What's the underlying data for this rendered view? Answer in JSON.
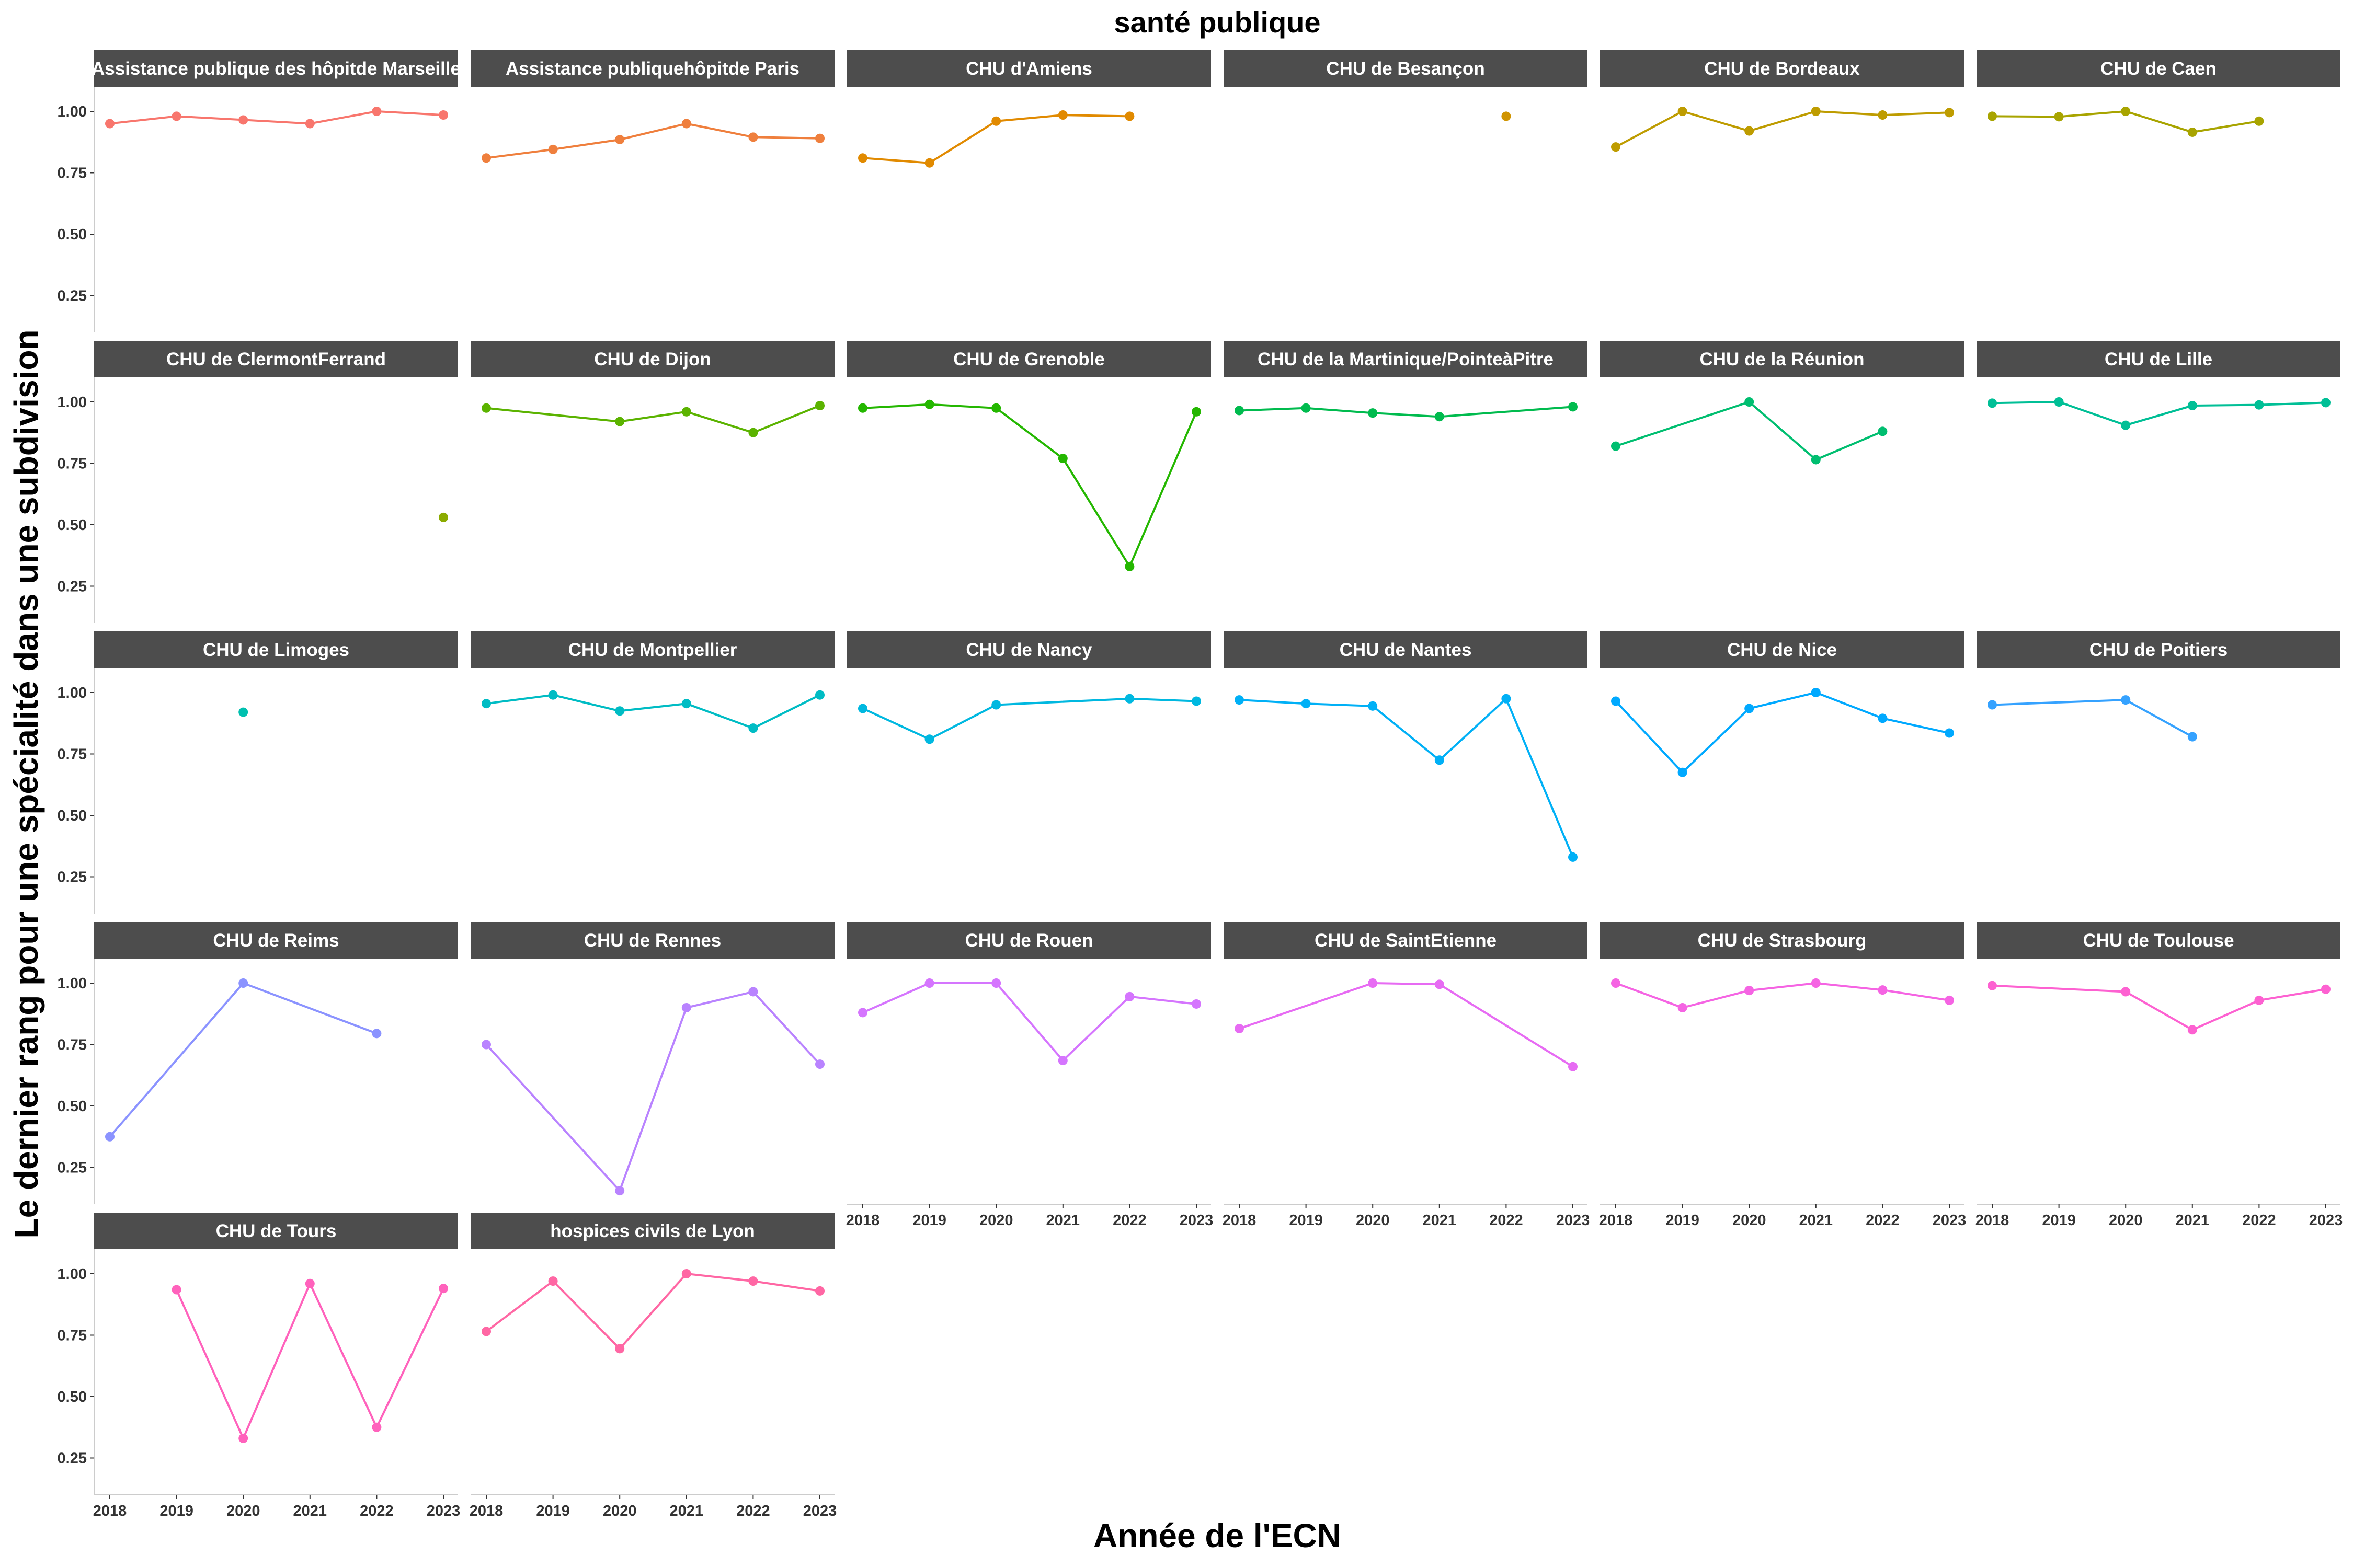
{
  "chart_data": {
    "type": "line",
    "title": "santé publique",
    "xlabel": "Année de l'ECN",
    "ylabel": "Le dernier rang pour une spécialité dans une subdivision",
    "x_ticks": [
      2018,
      2019,
      2020,
      2021,
      2022,
      2023
    ],
    "y_ticks": [
      "0.25",
      "0.50",
      "0.75",
      "1.00"
    ],
    "y_tick_values": [
      0.25,
      0.5,
      0.75,
      1.0
    ],
    "xlim": [
      2018,
      2023
    ],
    "ylim": [
      0.1,
      1.1
    ],
    "grid": false,
    "legend": "none",
    "panels": [
      {
        "name": "Assistance publique des hôpitde Marseille",
        "color": "#F8766D",
        "x": [
          2018,
          2019,
          2020,
          2021,
          2022,
          2023
        ],
        "y": [
          0.95,
          0.98,
          0.965,
          0.95,
          1.0,
          0.985
        ]
      },
      {
        "name": "Assistance publiquehôpitde Paris",
        "color": "#EF7F3D",
        "x": [
          2018,
          2019,
          2020,
          2021,
          2022,
          2023
        ],
        "y": [
          0.81,
          0.845,
          0.885,
          0.95,
          0.895,
          0.89
        ]
      },
      {
        "name": "CHU d'Amiens",
        "color": "#E18A00",
        "x": [
          2018,
          2019,
          2020,
          2021,
          2022
        ],
        "y": [
          0.81,
          0.79,
          0.96,
          0.985,
          0.98
        ]
      },
      {
        "name": "CHU de Besançon",
        "color": "#D09400",
        "x": [
          2022
        ],
        "y": [
          0.98
        ]
      },
      {
        "name": "CHU de Bordeaux",
        "color": "#BE9C00",
        "x": [
          2018,
          2019,
          2020,
          2021,
          2022,
          2023
        ],
        "y": [
          0.855,
          1.0,
          0.92,
          1.0,
          0.985,
          0.995
        ]
      },
      {
        "name": "CHU de Caen",
        "color": "#A8A400",
        "x": [
          2018,
          2019,
          2020,
          2021,
          2022
        ],
        "y": [
          0.98,
          0.978,
          1.0,
          0.915,
          0.96
        ]
      },
      {
        "name": "CHU de ClermontFerrand",
        "color": "#8BAB00",
        "x": [
          2023
        ],
        "y": [
          0.53
        ]
      },
      {
        "name": "CHU de Dijon",
        "color": "#5BB300",
        "x": [
          2018,
          2020,
          2021,
          2022,
          2023
        ],
        "y": [
          0.975,
          0.92,
          0.96,
          0.875,
          0.985
        ]
      },
      {
        "name": "CHU de Grenoble",
        "color": "#24B700",
        "x": [
          2018,
          2019,
          2020,
          2021,
          2022,
          2023
        ],
        "y": [
          0.975,
          0.99,
          0.975,
          0.77,
          0.33,
          0.96
        ]
      },
      {
        "name": "CHU de la Martinique/PointeàPitre",
        "color": "#00BB4E",
        "x": [
          2018,
          2019,
          2020,
          2021,
          2023
        ],
        "y": [
          0.965,
          0.975,
          0.955,
          0.94,
          0.98
        ]
      },
      {
        "name": "CHU de la Réunion",
        "color": "#00BE70",
        "x": [
          2018,
          2020,
          2021,
          2022
        ],
        "y": [
          0.82,
          1.0,
          0.765,
          0.88
        ]
      },
      {
        "name": "CHU de Lille",
        "color": "#00BF96",
        "x": [
          2018,
          2019,
          2020,
          2021,
          2022,
          2023
        ],
        "y": [
          0.995,
          1.0,
          0.905,
          0.985,
          0.988,
          0.997
        ]
      },
      {
        "name": "CHU de Limoges",
        "color": "#00C0AF",
        "x": [
          2020
        ],
        "y": [
          0.92
        ]
      },
      {
        "name": "CHU de Montpellier",
        "color": "#00BCC4",
        "x": [
          2018,
          2019,
          2020,
          2021,
          2022,
          2023
        ],
        "y": [
          0.955,
          0.99,
          0.925,
          0.955,
          0.855,
          0.99
        ]
      },
      {
        "name": "CHU de Nancy",
        "color": "#00B8E0",
        "x": [
          2018,
          2019,
          2020,
          2022,
          2023
        ],
        "y": [
          0.935,
          0.81,
          0.95,
          0.975,
          0.965
        ]
      },
      {
        "name": "CHU de Nantes",
        "color": "#00B0F6",
        "x": [
          2018,
          2019,
          2020,
          2021,
          2022,
          2023
        ],
        "y": [
          0.97,
          0.955,
          0.945,
          0.725,
          0.975,
          0.33
        ]
      },
      {
        "name": "CHU de Nice",
        "color": "#00A9FF",
        "x": [
          2018,
          2019,
          2020,
          2021,
          2022,
          2023
        ],
        "y": [
          0.965,
          0.675,
          0.935,
          1.0,
          0.895,
          0.835
        ]
      },
      {
        "name": "CHU de Poitiers",
        "color": "#35A2FF",
        "x": [
          2018,
          2020,
          2021
        ],
        "y": [
          0.95,
          0.97,
          0.82
        ]
      },
      {
        "name": "CHU de Reims",
        "color": "#8B93FF",
        "x": [
          2018,
          2020,
          2022
        ],
        "y": [
          0.375,
          1.0,
          0.795
        ]
      },
      {
        "name": "CHU de Rennes",
        "color": "#B983FF",
        "x": [
          2018,
          2020,
          2021,
          2022,
          2023
        ],
        "y": [
          0.75,
          0.155,
          0.9,
          0.965,
          0.67
        ]
      },
      {
        "name": "CHU de Rouen",
        "color": "#D575FE",
        "x": [
          2018,
          2019,
          2020,
          2021,
          2022,
          2023
        ],
        "y": [
          0.88,
          1.0,
          1.0,
          0.685,
          0.945,
          0.915
        ]
      },
      {
        "name": "CHU de SaintEtienne",
        "color": "#E76BF3",
        "x": [
          2018,
          2020,
          2021,
          2023
        ],
        "y": [
          0.815,
          1.0,
          0.995,
          0.66
        ]
      },
      {
        "name": "CHU de Strasbourg",
        "color": "#F564E3",
        "x": [
          2018,
          2019,
          2020,
          2021,
          2022,
          2023
        ],
        "y": [
          1.0,
          0.9,
          0.97,
          1.0,
          0.972,
          0.93
        ]
      },
      {
        "name": "CHU de Toulouse",
        "color": "#FD61D1",
        "x": [
          2018,
          2020,
          2021,
          2022,
          2023
        ],
        "y": [
          0.99,
          0.965,
          0.81,
          0.93,
          0.975
        ]
      },
      {
        "name": "CHU de Tours",
        "color": "#FF62BC",
        "x": [
          2019,
          2020,
          2021,
          2022,
          2023
        ],
        "y": [
          0.935,
          0.33,
          0.96,
          0.375,
          0.94
        ]
      },
      {
        "name": "hospices civils de Lyon",
        "color": "#FF67A4",
        "x": [
          2018,
          2019,
          2020,
          2021,
          2022,
          2023
        ],
        "y": [
          0.765,
          0.97,
          0.695,
          1.0,
          0.97,
          0.93
        ]
      }
    ]
  }
}
